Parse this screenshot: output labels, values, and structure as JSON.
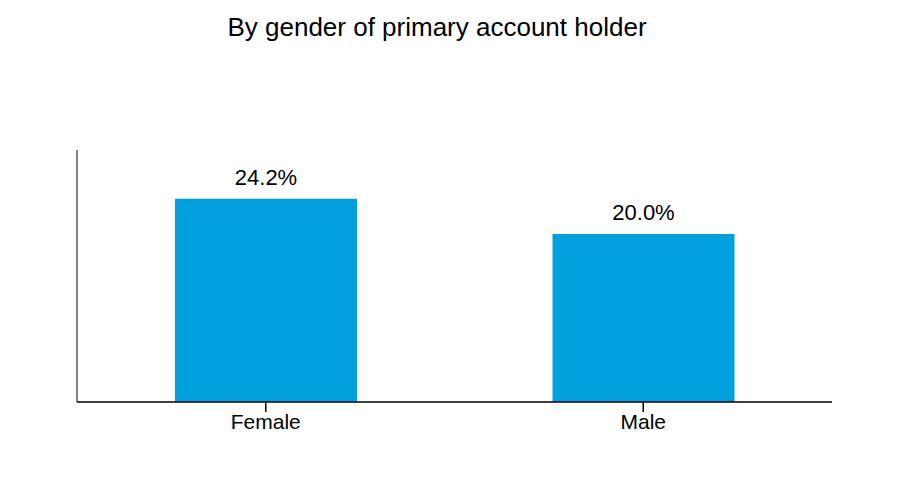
{
  "chart_data": {
    "type": "bar",
    "title": "By gender of primary account holder",
    "categories": [
      "Female",
      "Male"
    ],
    "values": [
      24.2,
      20.0
    ],
    "value_labels": [
      "24.2%",
      "20.0%"
    ],
    "color": "#00a0dc",
    "ylim": [
      0,
      30
    ],
    "yticks": [],
    "data_labels": true,
    "tick_labels": "x",
    "grid": false
  }
}
